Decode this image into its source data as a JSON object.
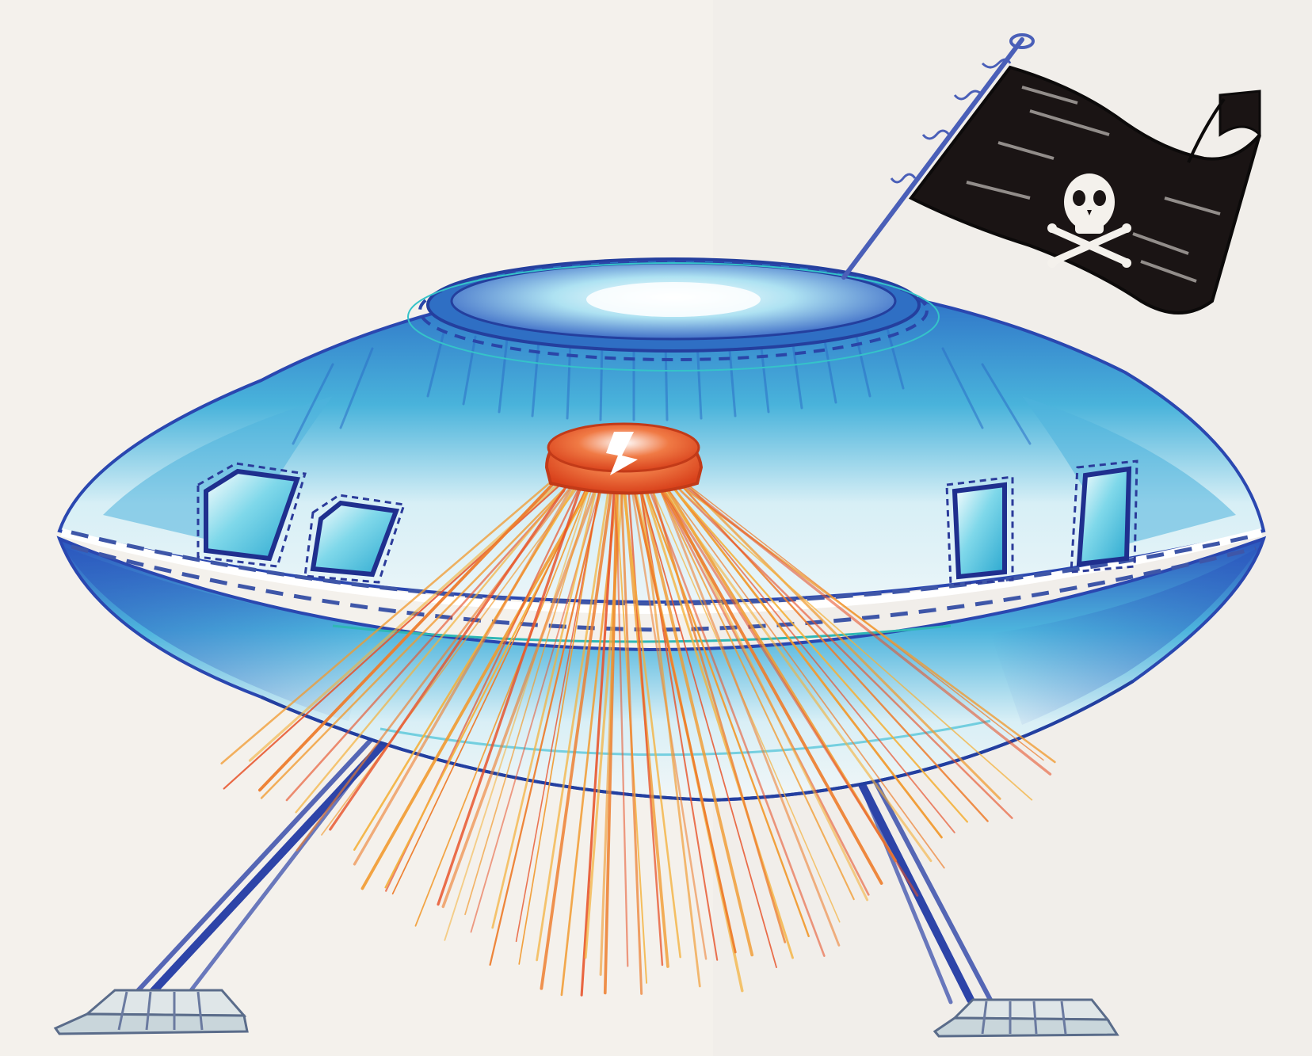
{
  "artwork": {
    "colors": {
      "paper": "#f4f1ec",
      "hull_dark_blue": "#2a4fb5",
      "hull_cyan": "#3fb0d8",
      "hull_light": "#bfe7f2",
      "beam_orange": "#f29a2e",
      "beam_red": "#e8532a",
      "flag_black": "#1a1414",
      "leg_blue": "#2d44a8"
    },
    "icons": {
      "flag": "skull-and-crossbones-icon"
    }
  }
}
